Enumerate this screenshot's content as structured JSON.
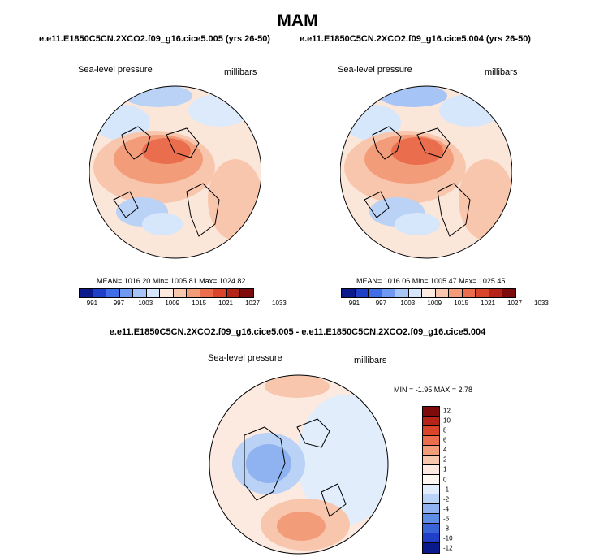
{
  "title": "MAM",
  "panels": [
    {
      "case": "e.e11.E1850C5CN.2XCO2.f09_g16.cice5.005 (yrs 26-50)",
      "variable": "Sea-level pressure",
      "units": "millibars",
      "stats": "MEAN= 1016.20  Min= 1005.81  Max= 1024.82",
      "colorbar_ticks": [
        "991",
        "997",
        "1003",
        "1009",
        "1015",
        "1021",
        "1027",
        "1033"
      ]
    },
    {
      "case": "e.e11.E1850C5CN.2XCO2.f09_g16.cice5.004 (yrs 26-50)",
      "variable": "Sea-level pressure",
      "units": "millibars",
      "stats": "MEAN= 1016.06  Min= 1005.47  Max= 1025.45",
      "colorbar_ticks": [
        "991",
        "997",
        "1003",
        "1009",
        "1015",
        "1021",
        "1027",
        "1033"
      ]
    }
  ],
  "diff": {
    "case": "e.e11.E1850C5CN.2XCO2.f09_g16.cice5.005 - e.e11.E1850C5CN.2XCO2.f09_g16.cice5.004",
    "variable": "Sea-level pressure",
    "units": "millibars",
    "stats": "MIN =  -1.95 MAX =   2.78",
    "colorbar_ticks": [
      "12",
      "10",
      "8",
      "6",
      "4",
      "2",
      "1",
      "0",
      "-1",
      "-2",
      "-4",
      "-6",
      "-8",
      "-10",
      "-12"
    ]
  },
  "colors": {
    "abs_scale": [
      "#0b1a8a",
      "#1f3fc9",
      "#3f6ee6",
      "#6f98f0",
      "#a6c4f5",
      "#d6e6fb",
      "#fce9df",
      "#f8c6ad",
      "#f39c7a",
      "#ea6d4d",
      "#d9442b",
      "#b42418",
      "#7e0b0b"
    ],
    "diff_scale": [
      "#7e0b0b",
      "#b42418",
      "#d9442b",
      "#ea6d4d",
      "#f39c7a",
      "#f8c6ad",
      "#fce9df",
      "#fff7f2",
      "#e1edfb",
      "#b9d2f6",
      "#8fb2f0",
      "#5f8ce6",
      "#3a63d8",
      "#1f3fc9",
      "#0b1a8a"
    ]
  }
}
